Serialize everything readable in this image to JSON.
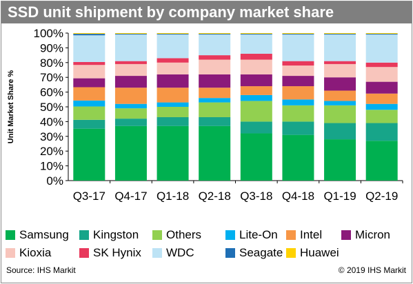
{
  "chart_data": {
    "type": "bar",
    "stacked": true,
    "title": "SSD unit shipment by company market share",
    "xlabel": "",
    "ylabel": "Unit Market Share %",
    "ylim": [
      0,
      100
    ],
    "yticks": [
      "0%",
      "10%",
      "20%",
      "30%",
      "40%",
      "50%",
      "60%",
      "70%",
      "80%",
      "90%",
      "100%"
    ],
    "grid": false,
    "legend_position": "bottom",
    "categories": [
      "Q3-17",
      "Q4-17",
      "Q1-18",
      "Q2-18",
      "Q3-18",
      "Q4-18",
      "Q1-19",
      "Q2-19"
    ],
    "series": [
      {
        "name": "Samsung",
        "color": "#00b050",
        "values": [
          35,
          37,
          37,
          37,
          32,
          31,
          28,
          27
        ]
      },
      {
        "name": "Kingston",
        "color": "#17a589",
        "values": [
          6,
          5,
          6,
          6,
          8,
          9,
          11,
          12
        ]
      },
      {
        "name": "Others",
        "color": "#92d050",
        "values": [
          9,
          7,
          7,
          10,
          14,
          11,
          12,
          9
        ]
      },
      {
        "name": "Lite-On",
        "color": "#00b0f0",
        "values": [
          4,
          3,
          3,
          3,
          4,
          4,
          3,
          4
        ]
      },
      {
        "name": "Intel",
        "color": "#f79646",
        "values": [
          9,
          11,
          10,
          7,
          6,
          9,
          7,
          7
        ]
      },
      {
        "name": "Micron",
        "color": "#8b1a7a",
        "values": [
          6,
          8,
          9,
          9,
          8,
          7,
          9,
          8
        ]
      },
      {
        "name": "Kioxia",
        "color": "#f8c5bc",
        "values": [
          9,
          8,
          8,
          10,
          10,
          7,
          9,
          10
        ]
      },
      {
        "name": "SK Hynix",
        "color": "#e8395c",
        "values": [
          2,
          2,
          3,
          3,
          4,
          3,
          2,
          3
        ]
      },
      {
        "name": "WDC",
        "color": "#bde3f5",
        "values": [
          18,
          18,
          16,
          14,
          13,
          18,
          18,
          19
        ]
      },
      {
        "name": "Seagate",
        "color": "#1f6fb5",
        "values": [
          1,
          0.5,
          0.5,
          0.5,
          0.5,
          0.5,
          0.5,
          0.5
        ]
      },
      {
        "name": "Huawei",
        "color": "#ffd200",
        "values": [
          0.5,
          0.5,
          0.5,
          0.5,
          0.5,
          0.5,
          0.5,
          0.5
        ]
      }
    ]
  },
  "footer": {
    "source": "Source: IHS Markit",
    "copyright": "© 2019 IHS Markit"
  }
}
